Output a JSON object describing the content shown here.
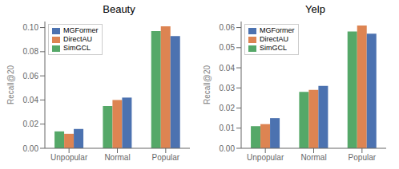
{
  "chart_data": [
    {
      "type": "bar",
      "title": "Beauty",
      "ylabel": "Recall@20",
      "categories": [
        "Unpopular",
        "Normal",
        "Popular"
      ],
      "series": [
        {
          "name": "SimGCL",
          "color": "#55a868",
          "values": [
            0.014,
            0.035,
            0.097
          ]
        },
        {
          "name": "DirectAU",
          "color": "#dd8452",
          "values": [
            0.012,
            0.04,
            0.101
          ]
        },
        {
          "name": "MGFormer",
          "color": "#4c72b0",
          "values": [
            0.016,
            0.042,
            0.093
          ]
        }
      ],
      "ylim": [
        0.0,
        0.105
      ],
      "yticks": [
        {
          "value": 0.0,
          "label": "0.00"
        },
        0.02,
        0.04,
        0.06,
        0.08,
        {
          "value": 0.1,
          "label": "0.10"
        }
      ],
      "grid": false,
      "legend": "upper left"
    },
    {
      "type": "bar",
      "title": "Yelp",
      "ylabel": "Recall@20",
      "categories": [
        "Unpopular",
        "Normal",
        "Popular"
      ],
      "series": [
        {
          "name": "SimGCL",
          "color": "#55a868",
          "values": [
            0.011,
            0.028,
            0.058
          ]
        },
        {
          "name": "DirectAU",
          "color": "#dd8452",
          "values": [
            0.012,
            0.029,
            0.061
          ]
        },
        {
          "name": "MGFormer",
          "color": "#4c72b0",
          "values": [
            0.015,
            0.031,
            0.057
          ]
        }
      ],
      "ylim": [
        0.0,
        0.063
      ],
      "yticks": [
        {
          "value": 0.0,
          "label": "0.00"
        },
        0.01,
        0.02,
        0.03,
        0.04,
        0.05,
        0.06
      ],
      "grid": false,
      "legend": "upper left"
    }
  ]
}
